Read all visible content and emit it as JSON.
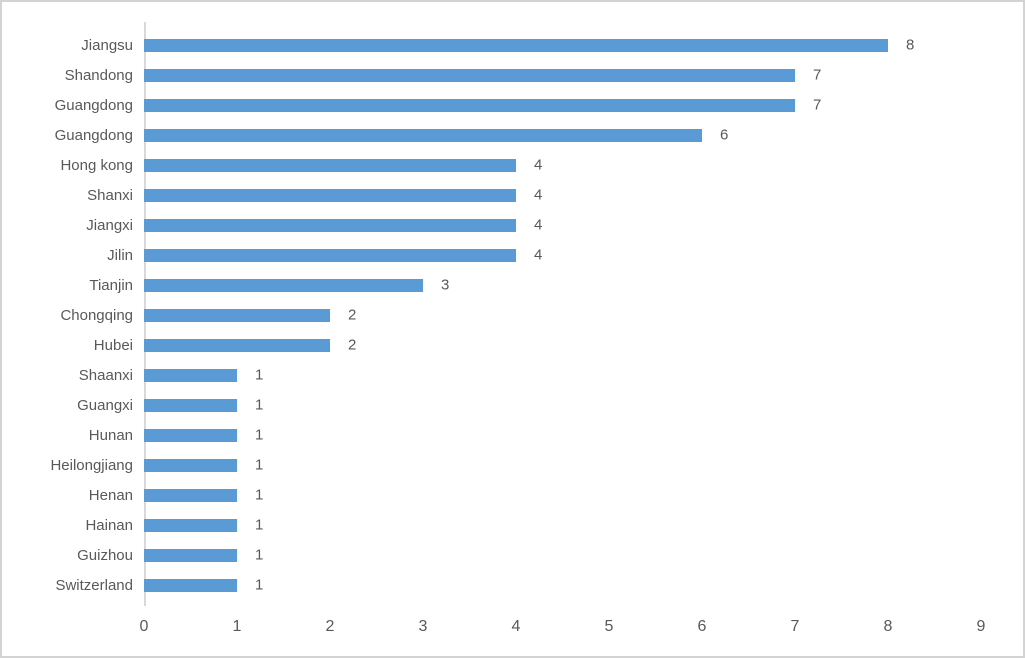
{
  "chart_data": {
    "type": "bar",
    "orientation": "horizontal",
    "title": "",
    "xlabel": "",
    "ylabel": "",
    "categories": [
      "Jiangsu",
      "Shandong",
      "Guangdong",
      "Guangdong",
      "Hong kong",
      "Shanxi",
      "Jiangxi",
      "Jilin",
      "Tianjin",
      "Chongqing",
      "Hubei",
      "Shaanxi",
      "Guangxi",
      "Hunan",
      "Heilongjiang",
      "Henan",
      "Hainan",
      "Guizhou",
      "Switzerland"
    ],
    "values": [
      8,
      7,
      7,
      6,
      4,
      4,
      4,
      4,
      3,
      2,
      2,
      1,
      1,
      1,
      1,
      1,
      1,
      1,
      1
    ],
    "data_labels": [
      8,
      7,
      7,
      6,
      4,
      4,
      4,
      4,
      3,
      2,
      2,
      1,
      1,
      1,
      1,
      1,
      1,
      1,
      1
    ],
    "xlim": [
      0,
      9
    ],
    "x_ticks": [
      "0",
      "1",
      "2",
      "3",
      "4",
      "5",
      "6",
      "7",
      "8",
      "9"
    ],
    "grid": false,
    "legend": false,
    "colors": {
      "bar": "#5b9bd5",
      "text": "#595959",
      "axis_line": "#d9d9d9",
      "frame_border": "#d3d3d3"
    }
  }
}
